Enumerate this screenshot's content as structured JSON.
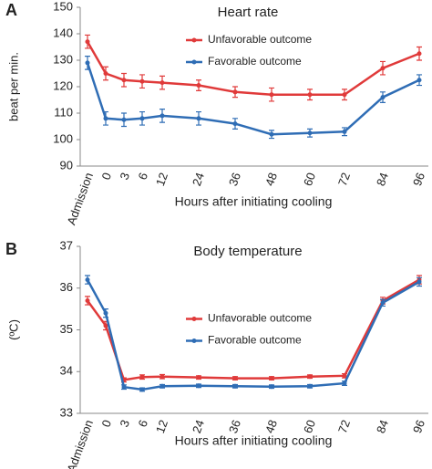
{
  "chart_data": [
    {
      "type": "line",
      "panel": "A",
      "title": "Heart rate",
      "y_label": "beat per min.",
      "x_label": "Hours after initiating cooling",
      "categories": [
        "Admission",
        "0",
        "3",
        "6",
        "12",
        "24",
        "36",
        "48",
        "60",
        "72",
        "84",
        "96"
      ],
      "series": [
        {
          "name": "Unfavorable outcome",
          "color": "#e03a3a",
          "values": [
            137,
            125,
            122.5,
            122,
            121.5,
            120.5,
            118,
            117,
            117,
            117,
            127,
            132.5
          ],
          "errors": [
            2.5,
            2.5,
            2.5,
            2.5,
            2.5,
            2,
            2,
            2.5,
            2,
            2,
            2.5,
            2.5
          ]
        },
        {
          "name": "Favorable outcome",
          "color": "#2f6db5",
          "values": [
            129,
            108,
            107.5,
            108,
            109,
            108,
            106,
            102,
            102.5,
            103,
            116,
            122.5
          ],
          "errors": [
            2.5,
            2.5,
            2.5,
            2.5,
            2.5,
            2.5,
            2,
            1.5,
            1.5,
            1.5,
            2,
            2
          ]
        }
      ],
      "ylim": [
        90,
        150
      ],
      "yticks": [
        90,
        100,
        110,
        120,
        130,
        140,
        150
      ],
      "grid": false,
      "legend": "top-center"
    },
    {
      "type": "line",
      "panel": "B",
      "title": "Body temperature",
      "y_label": "(ºC)",
      "x_label": "Hours after initiating cooling",
      "categories": [
        "Admission",
        "0",
        "3",
        "6",
        "12",
        "24",
        "36",
        "48",
        "60",
        "72",
        "84",
        "96"
      ],
      "series": [
        {
          "name": "Unfavorable outcome",
          "color": "#e03a3a",
          "values": [
            35.7,
            35.1,
            33.8,
            33.87,
            33.88,
            33.86,
            33.84,
            33.84,
            33.88,
            33.9,
            35.7,
            36.2
          ],
          "errors": [
            0.1,
            0.1,
            0.05,
            0.05,
            0.05,
            0.04,
            0.04,
            0.04,
            0.04,
            0.05,
            0.08,
            0.1
          ]
        },
        {
          "name": "Favorable outcome",
          "color": "#2f6db5",
          "values": [
            36.2,
            35.4,
            33.63,
            33.57,
            33.65,
            33.66,
            33.65,
            33.64,
            33.65,
            33.72,
            35.65,
            36.15
          ],
          "errors": [
            0.1,
            0.1,
            0.05,
            0.04,
            0.04,
            0.04,
            0.04,
            0.04,
            0.04,
            0.05,
            0.08,
            0.1
          ]
        }
      ],
      "ylim": [
        33,
        37
      ],
      "yticks": [
        33,
        34,
        35,
        36,
        37
      ],
      "grid": false,
      "legend": "center"
    }
  ]
}
